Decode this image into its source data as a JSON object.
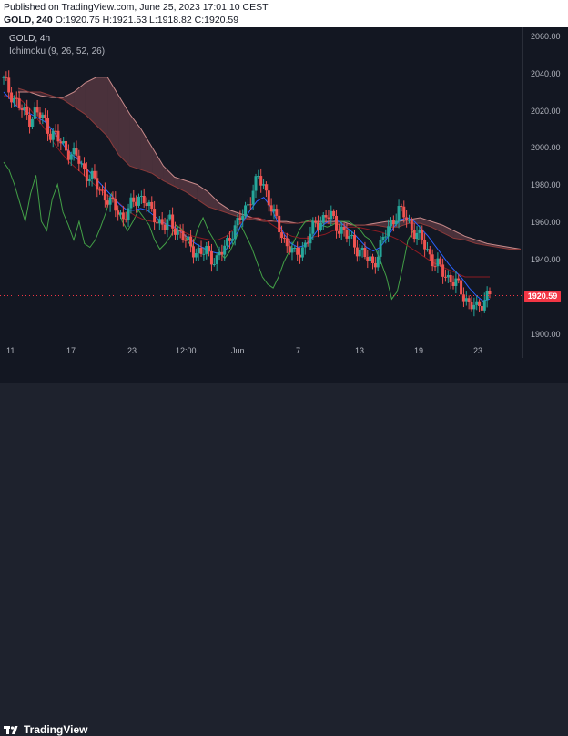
{
  "header": {
    "published": "Published on TradingView.com, June 25, 2023 17:01:10 CEST",
    "symbol": "GOLD, 240",
    "open_label": "O:",
    "open": "1920.75",
    "high_label": "H:",
    "high": "1921.53",
    "low_label": "L:",
    "low": "1918.82",
    "close_label": "C:",
    "close": "1920.59"
  },
  "legend": {
    "title": "GOLD, 4h",
    "indicator": "Ichimoku (9, 26, 52, 26)"
  },
  "price_axis": {
    "labels": [
      "2060.00",
      "2040.00",
      "2020.00",
      "2000.00",
      "1980.00",
      "1960.00",
      "1940.00",
      "1920.00",
      "1900.00"
    ],
    "current_price": "1920.59",
    "current_price_color": "#f23645"
  },
  "time_axis": {
    "labels": [
      "11",
      "17",
      "23",
      "12:00",
      "Jun",
      "7",
      "13",
      "19",
      "23"
    ]
  },
  "brand": {
    "name": "TradingView",
    "logo_icon": "tradingview-logo-icon"
  },
  "chart_data": {
    "type": "candlestick",
    "symbol": "GOLD",
    "interval": "4h",
    "ylim": [
      1895,
      2065
    ],
    "grid": false,
    "up_color": "#26a69a",
    "down_color": "#ef5350",
    "last_price": 1920.59,
    "price_series": [
      2036,
      2031,
      2027,
      2022,
      2018,
      2016,
      2019,
      2017,
      2014,
      2008,
      2006,
      2002,
      2000,
      1996,
      1995,
      1990,
      1986,
      1983,
      1979,
      1976,
      1972,
      1968,
      1966,
      1962,
      1966,
      1970,
      1974,
      1972,
      1966,
      1963,
      1960,
      1957,
      1960,
      1957,
      1953,
      1949,
      1947,
      1944,
      1942,
      1944,
      1941,
      1939,
      1943,
      1949,
      1955,
      1958,
      1964,
      1970,
      1977,
      1983,
      1980,
      1972,
      1963,
      1956,
      1950,
      1946,
      1941,
      1944,
      1948,
      1953,
      1958,
      1961,
      1963,
      1962,
      1958,
      1956,
      1952,
      1949,
      1946,
      1943,
      1939,
      1937,
      1943,
      1950,
      1956,
      1962,
      1966,
      1963,
      1959,
      1955,
      1951,
      1947,
      1942,
      1937,
      1934,
      1931,
      1929,
      1926,
      1922,
      1918,
      1915,
      1912,
      1916,
      1921
    ],
    "ichimoku": {
      "params": [
        9,
        26,
        52,
        26
      ],
      "tenkan": [
        2030,
        2026,
        2022,
        2020,
        2018,
        2016,
        2014,
        2010,
        2005,
        2000,
        1996,
        1993,
        1989,
        1985,
        1981,
        1977,
        1973,
        1969,
        1966,
        1966,
        1967,
        1966,
        1963,
        1960,
        1958,
        1957,
        1954,
        1951,
        1948,
        1946,
        1944,
        1943,
        1943,
        1947,
        1953,
        1960,
        1966,
        1971,
        1973,
        1968,
        1960,
        1953,
        1948,
        1946,
        1947,
        1951,
        1956,
        1959,
        1961,
        1960,
        1957,
        1954,
        1950,
        1946,
        1944,
        1946,
        1951,
        1957,
        1961,
        1962,
        1960,
        1956,
        1952,
        1947,
        1942,
        1937,
        1933,
        1929,
        1924,
        1920,
        1917,
        1918
      ],
      "kijun": [
        2028,
        2028,
        2026,
        2022,
        2016,
        2010,
        2003,
        1997,
        1992,
        1988,
        1984,
        1980,
        1976,
        1973,
        1970,
        1966,
        1963,
        1961,
        1960,
        1960,
        1958,
        1956,
        1954,
        1952,
        1951,
        1950,
        1950,
        1952,
        1956,
        1960,
        1962,
        1962,
        1960,
        1957,
        1954,
        1952,
        1951,
        1951,
        1952,
        1953,
        1955,
        1956,
        1957,
        1957,
        1956,
        1955,
        1954,
        1952,
        1950,
        1947,
        1944,
        1941,
        1938,
        1936,
        1934,
        1932,
        1930,
        1930,
        1930,
        1930
      ],
      "span_a": [
        2030,
        2030,
        2028,
        2027,
        2027,
        2030,
        2035,
        2038,
        2038,
        2028,
        2018,
        2010,
        2000,
        1990,
        1984,
        1982,
        1980,
        1976,
        1970,
        1966,
        1964,
        1962,
        1961,
        1960,
        1960,
        1959,
        1960,
        1960,
        1960,
        1960,
        1958,
        1958,
        1959,
        1960,
        1960,
        1961,
        1962,
        1960,
        1958,
        1955,
        1952,
        1950,
        1948,
        1947,
        1946,
        1945
      ],
      "span_b": [
        2032,
        2030,
        2030,
        2028,
        2026,
        2022,
        2018,
        2012,
        2006,
        1996,
        1990,
        1988,
        1986,
        1982,
        1979,
        1976,
        1972,
        1968,
        1966,
        1964,
        1962,
        1961,
        1960,
        1960,
        1959,
        1959,
        1960,
        1959,
        1959,
        1958,
        1958,
        1958,
        1958,
        1957,
        1957,
        1959,
        1959,
        1957,
        1954,
        1951,
        1950,
        1948,
        1947,
        1946,
        1945,
        1945
      ],
      "chikou": [
        1992,
        1988,
        1980,
        1970,
        1960,
        1975,
        1985,
        1960,
        1955,
        1972,
        1980,
        1965,
        1958,
        1950,
        1960,
        1948,
        1946,
        1950,
        1957,
        1965,
        1975,
        1968,
        1960,
        1955,
        1960,
        1966,
        1962,
        1958,
        1950,
        1945,
        1948,
        1952,
        1958,
        1956,
        1950,
        1946,
        1956,
        1962,
        1955,
        1950,
        1944,
        1940,
        1944,
        1950,
        1958,
        1952,
        1946,
        1938,
        1930,
        1926,
        1924,
        1930,
        1938,
        1944,
        1950,
        1956,
        1960,
        1961,
        1959,
        1958,
        1957,
        1958,
        1960,
        1960,
        1960,
        1958,
        1956,
        1952,
        1950,
        1945,
        1938,
        1930,
        1918,
        1922,
        1935,
        1950,
        1955,
        1950
      ]
    }
  }
}
